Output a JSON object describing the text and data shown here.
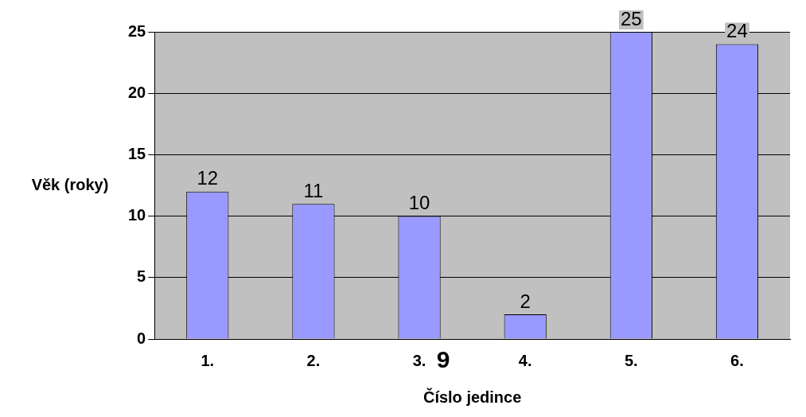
{
  "chart_data": {
    "type": "bar",
    "xlabel": "Číslo jedince",
    "ylabel": "Věk (roky)",
    "categories": [
      "1.",
      "2.",
      "3.",
      "4.",
      "5.",
      "6."
    ],
    "values": [
      12,
      11,
      10,
      2,
      25,
      24
    ],
    "color": "#9999ff",
    "ylim": [
      0,
      25
    ],
    "yticks": [
      0,
      5,
      10,
      15,
      20,
      25
    ],
    "grid": "y",
    "data_labels": true,
    "annotations": [
      "9"
    ]
  }
}
